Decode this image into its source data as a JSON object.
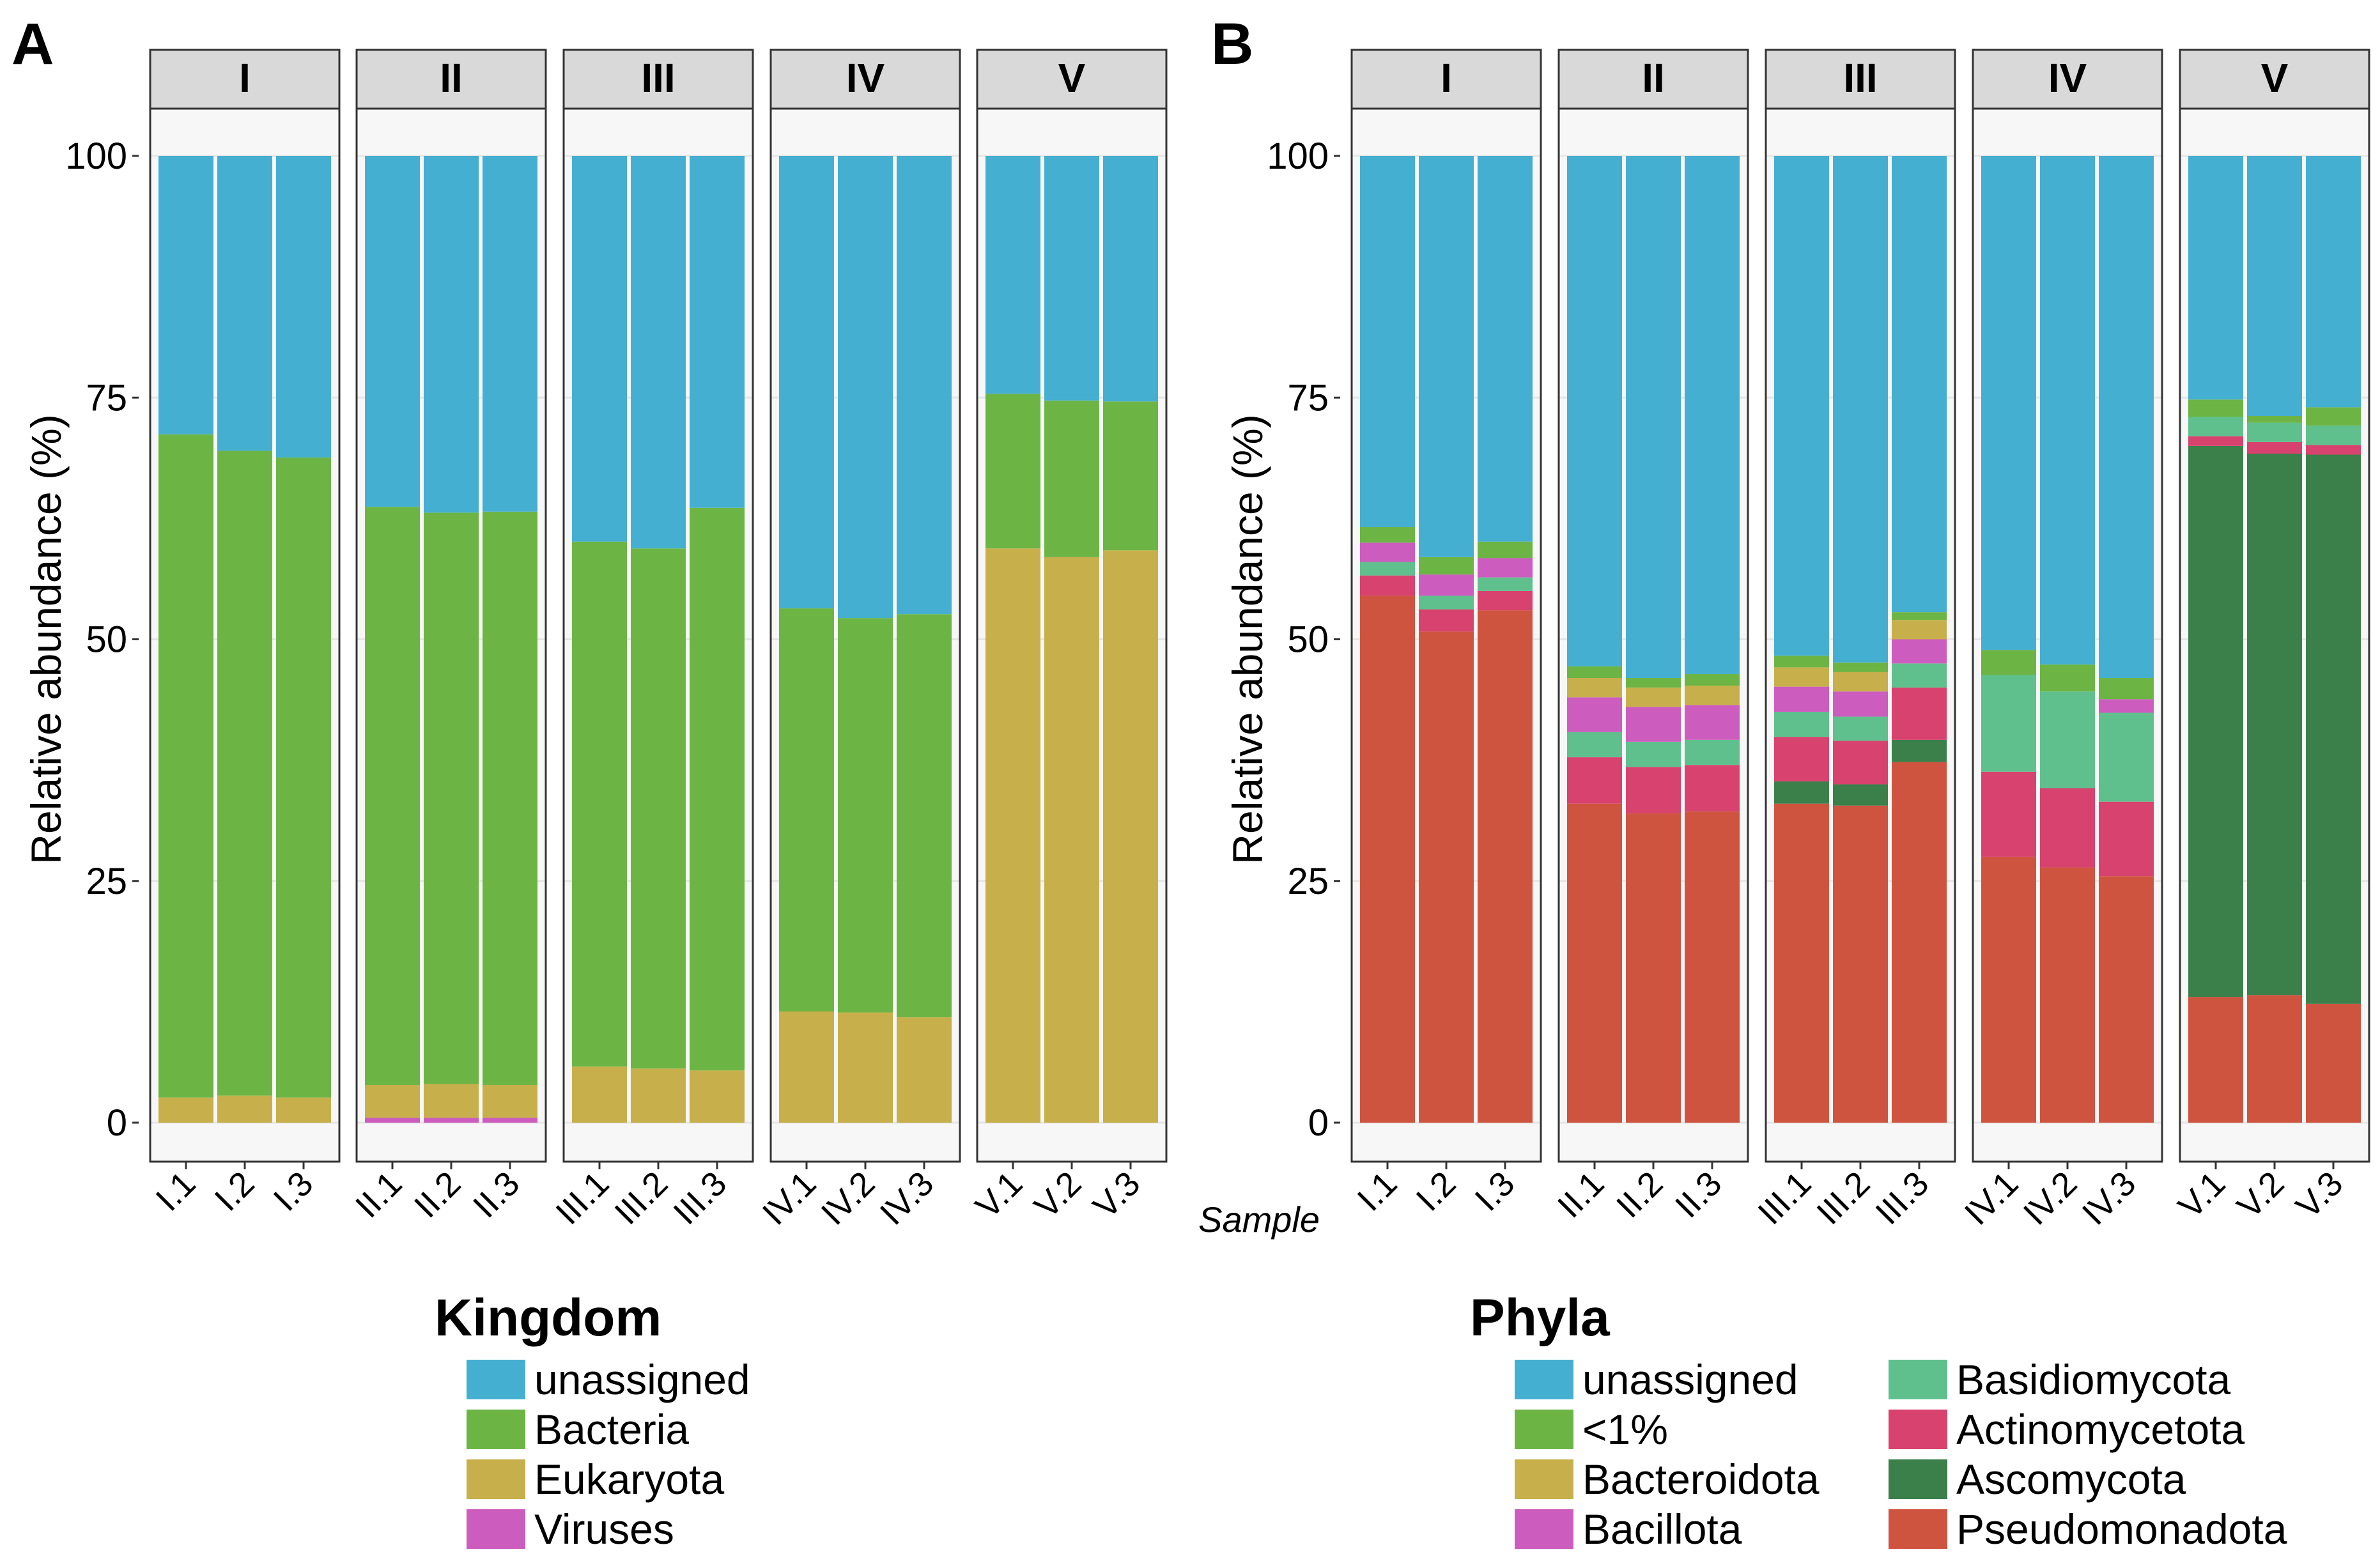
{
  "colors": {
    "unassigned": "#45AFD1",
    "bacteria": "#6CB545",
    "eukaryota": "#C7B04B",
    "viruses": "#CC5DBE",
    "lt1": "#6CB545",
    "bacteroidota": "#C7B04B",
    "bacillota": "#CC5DBE",
    "basidiomycota": "#5FC08D",
    "actinomycetota": "#D8426E",
    "ascomycota": "#3B7F4B",
    "pseudomonadota": "#CF5440",
    "panel_bg": "#F7F7F7",
    "strip_bg": "#D9D9D9",
    "grid": "#E6E6E6"
  },
  "chart_data": [
    {
      "panel": "A",
      "type": "bar",
      "stacked": true,
      "ylabel": "Relative abundance (%)",
      "ylim": [
        0,
        100
      ],
      "yticks": [
        0,
        25,
        50,
        75,
        100
      ],
      "groups": [
        "I",
        "II",
        "III",
        "IV",
        "V"
      ],
      "categories": [
        "I.1",
        "I.2",
        "I.3",
        "II.1",
        "II.2",
        "II.3",
        "III.1",
        "III.2",
        "III.3",
        "IV.1",
        "IV.2",
        "IV.3",
        "V.1",
        "V.2",
        "V.3"
      ],
      "legend_title": "Kingdom",
      "series": [
        {
          "name": "Viruses",
          "color_key": "viruses",
          "values": [
            0,
            0,
            0,
            0.5,
            0.5,
            0.5,
            0,
            0,
            0,
            0,
            0,
            0,
            0,
            0,
            0
          ]
        },
        {
          "name": "Eukaryota",
          "color_key": "eukaryota",
          "values": [
            2.6,
            2.8,
            2.6,
            3.4,
            3.5,
            3.4,
            5.8,
            5.6,
            5.4,
            11.5,
            11.4,
            10.9,
            59.4,
            58.5,
            59.2
          ]
        },
        {
          "name": "Bacteria",
          "color_key": "bacteria",
          "values": [
            68.6,
            66.7,
            66.2,
            59.8,
            59.1,
            59.3,
            54.3,
            53.8,
            58.2,
            41.7,
            40.8,
            41.7,
            16.0,
            16.2,
            15.4
          ]
        },
        {
          "name": "unassigned",
          "color_key": "unassigned",
          "values": [
            28.8,
            30.5,
            31.2,
            36.3,
            36.9,
            36.8,
            39.9,
            40.6,
            36.4,
            46.8,
            47.8,
            47.4,
            24.6,
            25.3,
            25.4
          ]
        }
      ],
      "legend": [
        "unassigned",
        "Bacteria",
        "Eukaryota",
        "Viruses"
      ]
    },
    {
      "panel": "B",
      "type": "bar",
      "stacked": true,
      "ylabel": "Relative abundance (%)",
      "xlabel": "Sample",
      "ylim": [
        0,
        100
      ],
      "yticks": [
        0,
        25,
        50,
        75,
        100
      ],
      "groups": [
        "I",
        "II",
        "III",
        "IV",
        "V"
      ],
      "categories": [
        "I.1",
        "I.2",
        "I.3",
        "II.1",
        "II.2",
        "II.3",
        "III.1",
        "III.2",
        "III.3",
        "IV.1",
        "IV.2",
        "IV.3",
        "V.1",
        "V.2",
        "V.3"
      ],
      "legend_title": "Phyla",
      "series": [
        {
          "name": "Pseudomonadota",
          "color_key": "pseudomonadota",
          "values": [
            54.5,
            50.8,
            53.0,
            33.0,
            32.0,
            32.2,
            33.0,
            32.8,
            37.3,
            27.5,
            26.4,
            25.5,
            13.0,
            13.2,
            12.3
          ]
        },
        {
          "name": "Ascomycota",
          "color_key": "ascomycota",
          "values": [
            0,
            0,
            0,
            0,
            0,
            0,
            2.3,
            2.2,
            2.3,
            0,
            0,
            0,
            57.0,
            56.0,
            56.8
          ]
        },
        {
          "name": "Actinomycetota",
          "color_key": "actinomycetota",
          "values": [
            2.1,
            2.3,
            2.0,
            4.8,
            4.8,
            4.8,
            4.6,
            4.5,
            5.4,
            8.8,
            8.2,
            7.7,
            1.0,
            1.2,
            1.0
          ]
        },
        {
          "name": "Basidiomycota",
          "color_key": "basidiomycota",
          "values": [
            1.4,
            1.4,
            1.4,
            2.6,
            2.6,
            2.6,
            2.6,
            2.5,
            2.5,
            10.0,
            10.0,
            9.2,
            2.0,
            2.0,
            2.0
          ]
        },
        {
          "name": "Bacillota",
          "color_key": "bacillota",
          "values": [
            2.0,
            2.2,
            2.0,
            3.6,
            3.6,
            3.6,
            2.6,
            2.6,
            2.5,
            0,
            0,
            1.4,
            0,
            0,
            0
          ]
        },
        {
          "name": "Bacteroidota",
          "color_key": "bacteroidota",
          "values": [
            0,
            0,
            0,
            2.0,
            2.0,
            2.0,
            2.0,
            2.0,
            2.0,
            0,
            0,
            0,
            0,
            0,
            0
          ]
        },
        {
          "name": "<1%",
          "color_key": "lt1",
          "values": [
            1.6,
            1.8,
            1.7,
            1.2,
            1.0,
            1.2,
            1.2,
            1.0,
            0.8,
            2.6,
            2.8,
            2.2,
            1.8,
            0.7,
            1.9
          ]
        },
        {
          "name": "unassigned",
          "color_key": "unassigned",
          "values": [
            38.4,
            41.5,
            39.9,
            52.8,
            54.0,
            53.6,
            51.7,
            52.4,
            47.2,
            51.1,
            52.6,
            54.0,
            25.2,
            26.9,
            26.0
          ]
        }
      ],
      "legend": [
        "unassigned",
        "<1%",
        "Bacteroidota",
        "Bacillota",
        "Basidiomycota",
        "Actinomycetota",
        "Ascomycota",
        "Pseudomonadota"
      ]
    }
  ]
}
